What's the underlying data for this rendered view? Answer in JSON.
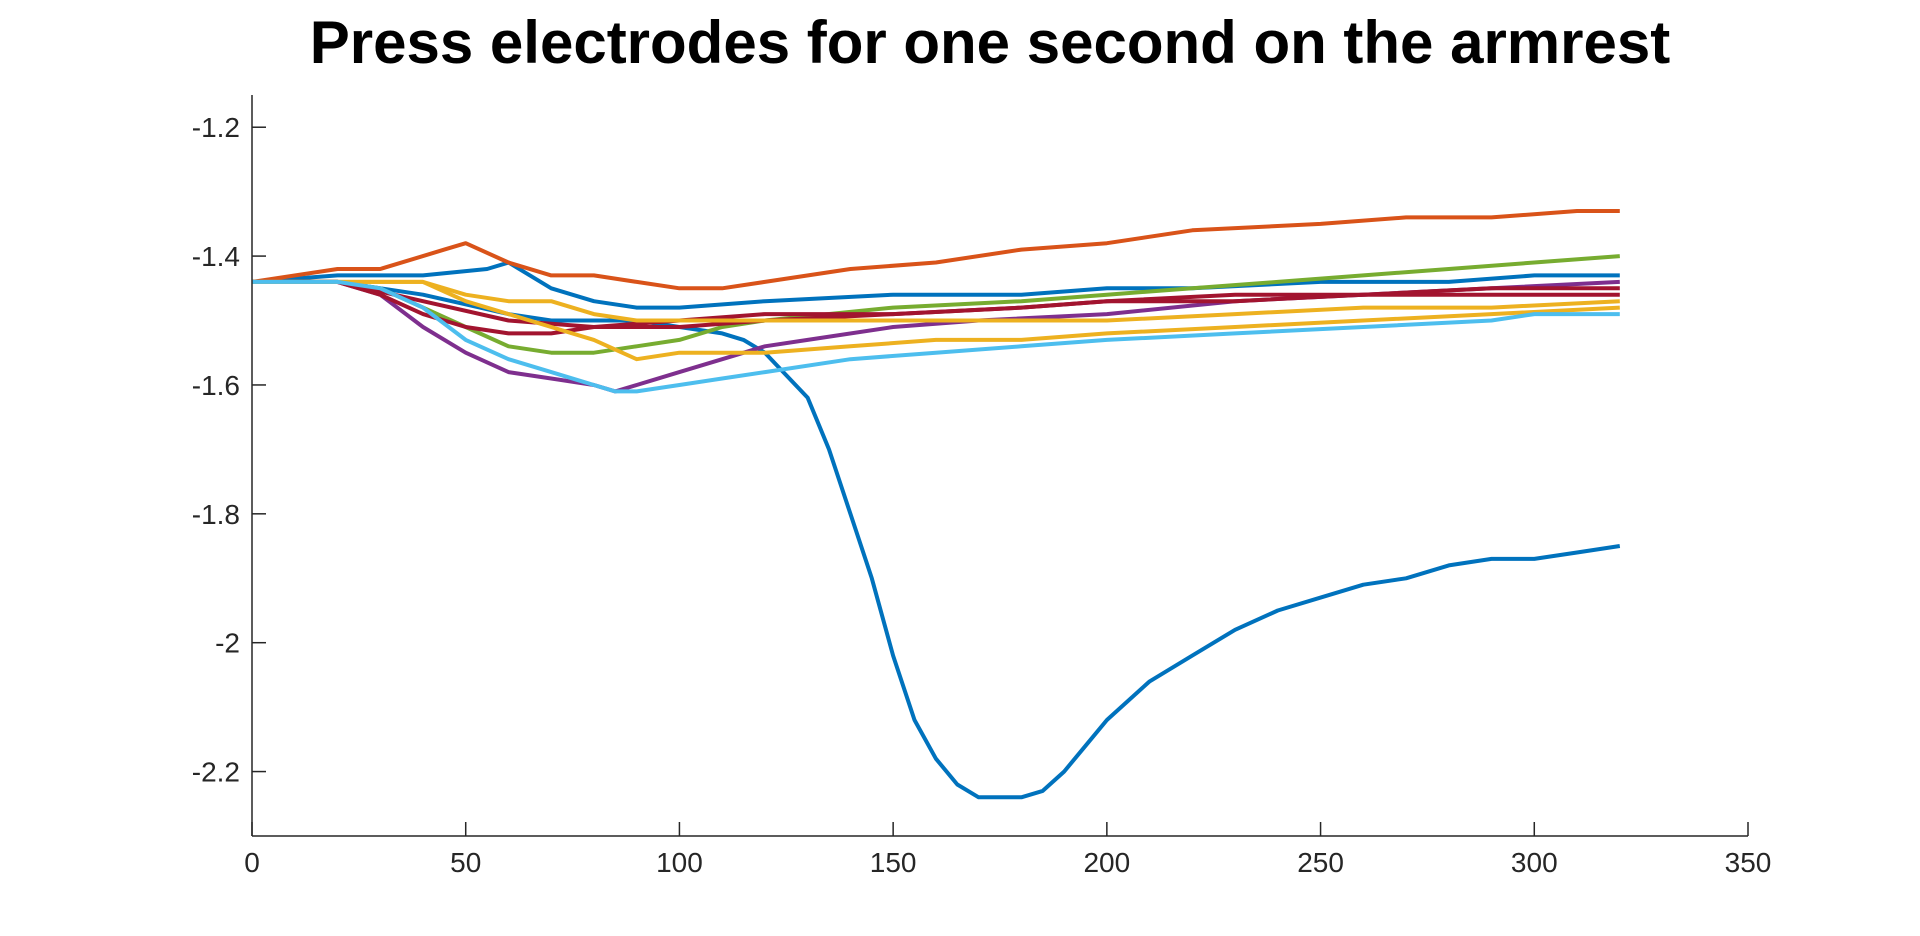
{
  "chart_data": {
    "type": "line",
    "title": "Press electrodes for one second on the armrest",
    "xlabel": "",
    "ylabel": "",
    "xlim": [
      0,
      350
    ],
    "ylim": [
      -2.3,
      -1.15
    ],
    "xticks": [
      0,
      50,
      100,
      150,
      200,
      250,
      300,
      350
    ],
    "yticks": [
      -1.2,
      -1.4,
      -1.6,
      -1.8,
      -2,
      -2.2
    ],
    "xtick_labels": [
      "0",
      "50",
      "100",
      "150",
      "200",
      "250",
      "300",
      "350"
    ],
    "ytick_labels": [
      "-1.2",
      "-1.4",
      "-1.6",
      "-1.8",
      "-2",
      "-2.2"
    ],
    "grid": false,
    "legend": "none",
    "series": [
      {
        "color": "#0072BD",
        "x": [
          0,
          20,
          40,
          60,
          70,
          80,
          85,
          90,
          100,
          110,
          115,
          120,
          130,
          135,
          140,
          145,
          150,
          155,
          160,
          165,
          170,
          175,
          180,
          185,
          190,
          195,
          200,
          210,
          220,
          230,
          240,
          250,
          260,
          270,
          280,
          290,
          300,
          310,
          320
        ],
        "y": [
          -1.44,
          -1.44,
          -1.46,
          -1.49,
          -1.5,
          -1.5,
          -1.5,
          -1.5,
          -1.51,
          -1.52,
          -1.53,
          -1.55,
          -1.62,
          -1.7,
          -1.8,
          -1.9,
          -2.02,
          -2.12,
          -2.18,
          -2.22,
          -2.24,
          -2.24,
          -2.24,
          -2.23,
          -2.2,
          -2.16,
          -2.12,
          -2.06,
          -2.02,
          -1.98,
          -1.95,
          -1.93,
          -1.91,
          -1.9,
          -1.88,
          -1.87,
          -1.87,
          -1.86,
          -1.85
        ]
      },
      {
        "color": "#0072BD",
        "x": [
          0,
          20,
          40,
          55,
          60,
          70,
          80,
          90,
          100,
          120,
          150,
          180,
          200,
          220,
          250,
          280,
          300,
          320
        ],
        "y": [
          -1.44,
          -1.43,
          -1.43,
          -1.42,
          -1.41,
          -1.45,
          -1.47,
          -1.48,
          -1.48,
          -1.47,
          -1.46,
          -1.46,
          -1.45,
          -1.45,
          -1.44,
          -1.44,
          -1.43,
          -1.43
        ]
      },
      {
        "color": "#D95319",
        "x": [
          0,
          20,
          30,
          45,
          50,
          60,
          70,
          80,
          90,
          100,
          110,
          120,
          140,
          160,
          180,
          200,
          220,
          250,
          270,
          290,
          310,
          320
        ],
        "y": [
          -1.44,
          -1.42,
          -1.42,
          -1.39,
          -1.38,
          -1.41,
          -1.43,
          -1.43,
          -1.44,
          -1.45,
          -1.45,
          -1.44,
          -1.42,
          -1.41,
          -1.39,
          -1.38,
          -1.36,
          -1.35,
          -1.34,
          -1.34,
          -1.33,
          -1.33
        ]
      },
      {
        "color": "#77AC30",
        "x": [
          0,
          20,
          30,
          40,
          50,
          60,
          70,
          80,
          90,
          100,
          110,
          120,
          150,
          180,
          200,
          220,
          240,
          260,
          280,
          300,
          320
        ],
        "y": [
          -1.44,
          -1.44,
          -1.45,
          -1.48,
          -1.51,
          -1.54,
          -1.55,
          -1.55,
          -1.54,
          -1.53,
          -1.51,
          -1.5,
          -1.48,
          -1.47,
          -1.46,
          -1.45,
          -1.44,
          -1.43,
          -1.42,
          -1.41,
          -1.4
        ]
      },
      {
        "color": "#7E2F8E",
        "x": [
          0,
          20,
          30,
          40,
          50,
          60,
          70,
          80,
          85,
          90,
          100,
          110,
          120,
          130,
          150,
          170,
          200,
          230,
          260,
          290,
          320
        ],
        "y": [
          -1.44,
          -1.44,
          -1.46,
          -1.51,
          -1.55,
          -1.58,
          -1.59,
          -1.6,
          -1.61,
          -1.6,
          -1.58,
          -1.56,
          -1.54,
          -1.53,
          -1.51,
          -1.5,
          -1.49,
          -1.47,
          -1.46,
          -1.45,
          -1.44
        ]
      },
      {
        "color": "#A2142F",
        "x": [
          0,
          20,
          30,
          40,
          50,
          60,
          70,
          80,
          90,
          100,
          120,
          150,
          180,
          200,
          230,
          260,
          290,
          320
        ],
        "y": [
          -1.44,
          -1.44,
          -1.46,
          -1.49,
          -1.51,
          -1.52,
          -1.52,
          -1.51,
          -1.51,
          -1.51,
          -1.5,
          -1.49,
          -1.48,
          -1.47,
          -1.46,
          -1.46,
          -1.45,
          -1.45
        ]
      },
      {
        "color": "#A2142F",
        "x": [
          0,
          20,
          40,
          60,
          80,
          100,
          120,
          150,
          180,
          200,
          230,
          260,
          290,
          320
        ],
        "y": [
          -1.44,
          -1.44,
          -1.47,
          -1.5,
          -1.51,
          -1.5,
          -1.49,
          -1.49,
          -1.48,
          -1.47,
          -1.47,
          -1.46,
          -1.46,
          -1.46
        ]
      },
      {
        "color": "#EDB120",
        "x": [
          0,
          20,
          30,
          40,
          50,
          60,
          70,
          80,
          90,
          100,
          120,
          140,
          160,
          180,
          200,
          230,
          260,
          290,
          320
        ],
        "y": [
          -1.44,
          -1.44,
          -1.44,
          -1.44,
          -1.47,
          -1.49,
          -1.51,
          -1.53,
          -1.56,
          -1.55,
          -1.55,
          -1.54,
          -1.53,
          -1.53,
          -1.52,
          -1.51,
          -1.5,
          -1.49,
          -1.48
        ]
      },
      {
        "color": "#EDB120",
        "x": [
          0,
          20,
          40,
          50,
          60,
          70,
          80,
          90,
          100,
          120,
          150,
          180,
          200,
          230,
          260,
          290,
          320
        ],
        "y": [
          -1.44,
          -1.44,
          -1.44,
          -1.46,
          -1.47,
          -1.47,
          -1.49,
          -1.5,
          -1.5,
          -1.5,
          -1.5,
          -1.5,
          -1.5,
          -1.49,
          -1.48,
          -1.48,
          -1.47
        ]
      },
      {
        "color": "#4DBEEE",
        "x": [
          0,
          20,
          30,
          40,
          50,
          60,
          70,
          80,
          85,
          90,
          100,
          110,
          120,
          140,
          160,
          180,
          200,
          230,
          260,
          290,
          300,
          320
        ],
        "y": [
          -1.44,
          -1.44,
          -1.45,
          -1.48,
          -1.53,
          -1.56,
          -1.58,
          -1.6,
          -1.61,
          -1.61,
          -1.6,
          -1.59,
          -1.58,
          -1.56,
          -1.55,
          -1.54,
          -1.53,
          -1.52,
          -1.51,
          -1.5,
          -1.49,
          -1.49
        ]
      }
    ]
  }
}
